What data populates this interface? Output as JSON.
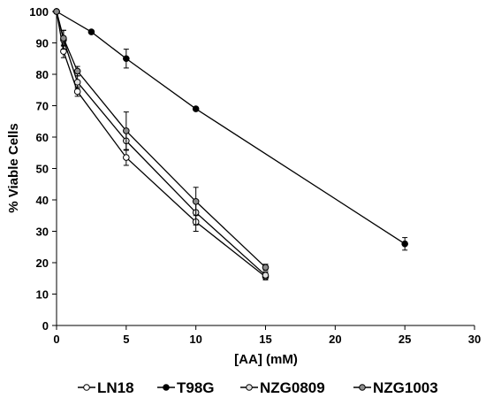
{
  "chart_data": {
    "type": "line",
    "xlabel": "[AA] (mM)",
    "ylabel": "% Viable Cells",
    "xlim": [
      0,
      30
    ],
    "ylim": [
      0,
      100
    ],
    "xticks": [
      0,
      5,
      10,
      15,
      20,
      25,
      30
    ],
    "yticks": [
      0,
      10,
      20,
      30,
      40,
      50,
      60,
      70,
      80,
      90,
      100
    ],
    "grid": false,
    "legend_position": "bottom",
    "series": [
      {
        "name": "LN18",
        "marker_fill": "#ffffff",
        "x": [
          0,
          0.5,
          1.5,
          5,
          10,
          15
        ],
        "y": [
          100,
          87.3,
          74.5,
          53.5,
          33,
          15.5
        ],
        "err": [
          0,
          2,
          1.5,
          2.5,
          3,
          1
        ]
      },
      {
        "name": "T98G",
        "marker_fill": "#000000",
        "x": [
          0,
          2.5,
          5,
          10,
          25
        ],
        "y": [
          100,
          93.5,
          85,
          69,
          26
        ],
        "err": [
          0,
          0,
          3,
          0,
          2
        ]
      },
      {
        "name": "NZG0809",
        "marker_fill": "#e0e0e0",
        "x": [
          0,
          0.5,
          1.5,
          5,
          10,
          15
        ],
        "y": [
          100,
          91,
          77.5,
          58.8,
          36,
          16
        ],
        "err": [
          0,
          3,
          2,
          3,
          4,
          1
        ]
      },
      {
        "name": "NZG1003",
        "marker_fill": "#8c8c8c",
        "x": [
          0,
          0.5,
          1.5,
          5,
          10,
          15
        ],
        "y": [
          100,
          91.5,
          81,
          62,
          39.5,
          18.5
        ],
        "err": [
          0,
          2.5,
          1.5,
          6,
          4.5,
          1
        ]
      }
    ]
  }
}
